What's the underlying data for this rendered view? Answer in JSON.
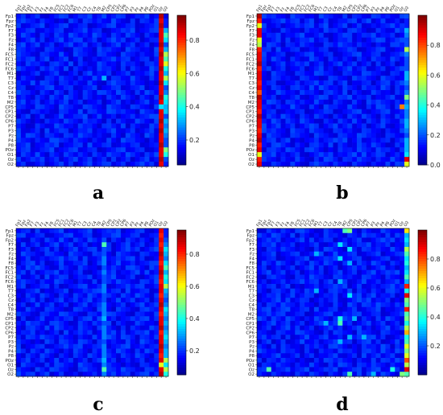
{
  "chart_data": {
    "type": "heatmap",
    "colormap": "jet",
    "channels": [
      "Fp1",
      "Fpz",
      "Fp2",
      "F7",
      "F3",
      "Fz",
      "F4",
      "F8",
      "FC5",
      "FC1",
      "FC2",
      "FC6",
      "M1",
      "T7",
      "C3",
      "Cz",
      "C4",
      "T8",
      "M2",
      "CP5",
      "CP1",
      "CP2",
      "CP6",
      "P7",
      "P3",
      "Pz",
      "P4",
      "P8",
      "POz",
      "O1",
      "Oz",
      "O2"
    ],
    "panels": [
      {
        "label": "a",
        "zlim": [
          0.05,
          0.95
        ],
        "colorbar_ticks": [
          0.2,
          0.4,
          0.6,
          0.8
        ],
        "bright_columns": [
          {
            "col": 30,
            "values": [
              0.95,
              0.9,
              0.95,
              0.9,
              0.9,
              0.9,
              0.95,
              0.9,
              0.95,
              0.9,
              0.9,
              0.95,
              0.9,
              0.9,
              0.95,
              0.9,
              0.9,
              0.95,
              0.9,
              0.95,
              0.9,
              0.9,
              0.95,
              0.9,
              0.95,
              0.9,
              0.9,
              0.95,
              0.9,
              0.9,
              0.95,
              0.9
            ]
          },
          {
            "col": 31,
            "values": [
              0.1,
              0.15,
              0.15,
              0.3,
              0.45,
              0.35,
              0.2,
              0.3,
              0.55,
              0.45,
              0.6,
              0.4,
              0.3,
              0.55,
              0.35,
              0.2,
              0.25,
              0.4,
              0.35,
              0.3,
              0.25,
              0.2,
              0.3,
              0.25,
              0.3,
              0.25,
              0.2,
              0.2,
              0.5,
              0.4,
              0.2,
              0.15
            ]
          }
        ],
        "spots": [
          [
            30,
            19,
            0.35
          ],
          [
            31,
            19,
            0.3
          ],
          [
            31,
            20,
            0.32
          ],
          [
            18,
            13,
            0.3
          ]
        ]
      },
      {
        "label": "b",
        "zlim": [
          0.0,
          1.0
        ],
        "colorbar_ticks": [
          0.0,
          0.2,
          0.4,
          0.6,
          0.8
        ],
        "bright_columns": [
          {
            "col": 0,
            "values": [
              0.95,
              0.85,
              0.6,
              0.9,
              0.9,
              0.6,
              0.55,
              0.85,
              0.9,
              0.9,
              0.95,
              0.85,
              0.9,
              0.9,
              0.85,
              0.9,
              0.8,
              0.95,
              0.9,
              0.9,
              0.85,
              0.95,
              0.9,
              0.9,
              0.85,
              0.9,
              0.95,
              0.85,
              0.9,
              0.6,
              0.85,
              0.9
            ]
          },
          {
            "col": 31,
            "values": [
              0.2,
              0.15,
              0.15,
              0.3,
              0.25,
              0.2,
              0.2,
              0.55,
              0.25,
              0.2,
              0.2,
              0.2,
              0.3,
              0.3,
              0.25,
              0.2,
              0.25,
              0.5,
              0.25,
              0.3,
              0.25,
              0.25,
              0.3,
              0.3,
              0.25,
              0.2,
              0.3,
              0.3,
              0.3,
              0.35,
              0.85,
              0.6
            ]
          }
        ],
        "spots": [
          [
            30,
            19,
            0.75
          ],
          [
            31,
            30,
            0.9
          ]
        ]
      },
      {
        "label": "c",
        "zlim": [
          0.05,
          0.95
        ],
        "colorbar_ticks": [
          0.2,
          0.4,
          0.6,
          0.8
        ],
        "bright_columns": [
          {
            "col": 30,
            "values": [
              0.9,
              0.85,
              0.9,
              0.85,
              0.9,
              0.95,
              0.9,
              0.85,
              0.9,
              0.95,
              0.9,
              0.85,
              0.9,
              0.9,
              0.85,
              0.9,
              0.95,
              0.9,
              0.85,
              0.9,
              0.9,
              0.95,
              0.85,
              0.9,
              0.9,
              0.95,
              0.9,
              0.85,
              0.9,
              0.6,
              0.9,
              0.95
            ]
          },
          {
            "col": 31,
            "values": [
              0.15,
              0.15,
              0.2,
              0.25,
              0.35,
              0.3,
              0.25,
              0.35,
              0.45,
              0.3,
              0.4,
              0.35,
              0.55,
              0.3,
              0.25,
              0.2,
              0.25,
              0.35,
              0.3,
              0.25,
              0.3,
              0.25,
              0.3,
              0.35,
              0.3,
              0.25,
              0.3,
              0.3,
              0.55,
              0.35,
              0.55,
              0.4
            ]
          },
          {
            "col": 18,
            "values": [
              0.15,
              0.15,
              0.2,
              0.45,
              0.2,
              0.2,
              0.25,
              0.25,
              0.2,
              0.25,
              0.2,
              0.2,
              0.25,
              0.25,
              0.2,
              0.2,
              0.25,
              0.25,
              0.25,
              0.3,
              0.2,
              0.25,
              0.25,
              0.25,
              0.2,
              0.25,
              0.25,
              0.25,
              0.3,
              0.25,
              0.45,
              0.25
            ]
          }
        ],
        "spots": []
      },
      {
        "label": "d",
        "zlim": [
          0.0,
          1.0
        ],
        "colorbar_ticks": [
          0.2,
          0.4,
          0.6,
          0.8
        ],
        "bright_columns": [
          {
            "col": 31,
            "values": [
              0.65,
              0.3,
              0.35,
              0.3,
              0.55,
              0.45,
              0.35,
              0.4,
              0.3,
              0.35,
              0.45,
              0.3,
              0.85,
              0.4,
              0.9,
              0.5,
              0.45,
              0.85,
              0.45,
              0.5,
              0.4,
              0.55,
              0.7,
              0.4,
              0.45,
              0.6,
              0.5,
              0.6,
              0.8,
              0.55,
              0.9,
              0.45
            ]
          }
        ],
        "spots": [
          [
            18,
            0,
            0.45
          ],
          [
            19,
            0,
            0.5
          ],
          [
            17,
            3,
            0.35
          ],
          [
            19,
            4,
            0.35
          ],
          [
            12,
            5,
            0.3
          ],
          [
            17,
            6,
            0.35
          ],
          [
            19,
            7,
            0.3
          ],
          [
            17,
            11,
            0.3
          ],
          [
            12,
            13,
            0.3
          ],
          [
            19,
            14,
            0.35
          ],
          [
            17,
            19,
            0.4
          ],
          [
            17,
            20,
            0.45
          ],
          [
            20,
            19,
            0.3
          ],
          [
            14,
            20,
            0.3
          ],
          [
            19,
            23,
            0.3
          ],
          [
            22,
            23,
            0.3
          ],
          [
            17,
            24,
            0.3
          ],
          [
            2,
            30,
            0.45
          ],
          [
            28,
            30,
            0.4
          ],
          [
            19,
            31,
            0.45
          ],
          [
            24,
            31,
            0.3
          ],
          [
            30,
            31,
            0.5
          ]
        ]
      }
    ]
  }
}
